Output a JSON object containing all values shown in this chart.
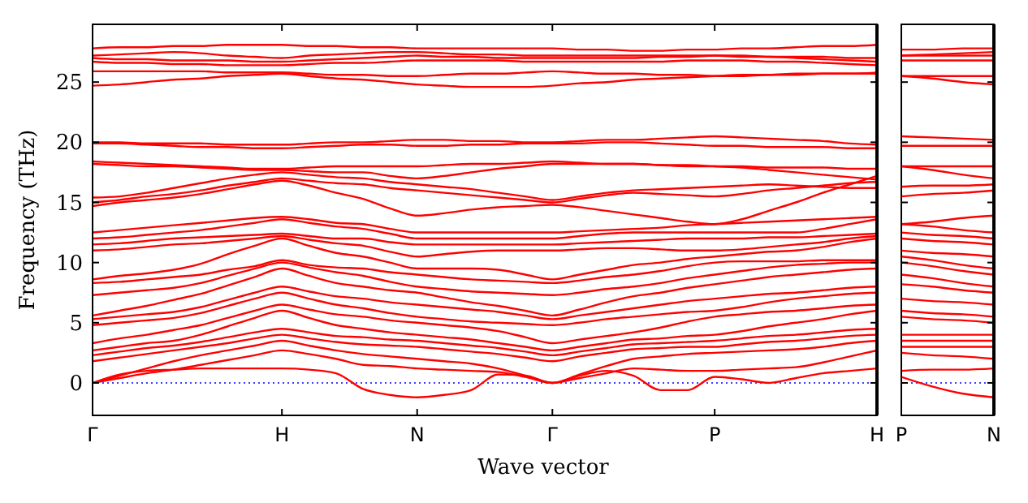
{
  "chart_data": [
    {
      "type": "line",
      "ylabel": "Frequency (THz)",
      "xlabel": "Wave vector",
      "categories": [
        "Γ",
        null,
        null,
        null,
        null,
        null,
        null,
        "H",
        null,
        null,
        null,
        null,
        "N",
        null,
        null,
        null,
        null,
        "Γ",
        null,
        null,
        null,
        null,
        null,
        "P",
        null,
        null,
        null,
        null,
        null,
        "H"
      ],
      "ylim": [
        -2.7,
        29.8
      ],
      "yticks": [
        0,
        5,
        10,
        15,
        20,
        25
      ],
      "ref_lines": [
        {
          "axis": "y",
          "value": 0,
          "color": "#0000ff",
          "line_style": "dotted"
        }
      ],
      "series": [
        {
          "color": "#ff0000",
          "values": [
            0,
            0.7,
            1.0,
            1.1,
            1.2,
            1.2,
            1.2,
            1.2,
            1.1,
            0.8,
            -0.5,
            -1.0,
            -1.2,
            -1.0,
            -0.6,
            0.7,
            0.6,
            0,
            0.6,
            1.0,
            0.6,
            -0.6,
            -0.6,
            0.5,
            0.3,
            0,
            0.4,
            0.8,
            1.0,
            1.2
          ]
        },
        {
          "color": "#ff0000",
          "values": [
            0,
            0.4,
            0.8,
            1.1,
            1.5,
            1.9,
            2.3,
            2.7,
            2.4,
            2.0,
            1.5,
            1.4,
            1.2,
            1.1,
            1.0,
            0.9,
            0.5,
            0,
            0.4,
            0.8,
            1.2,
            1.1,
            1.0,
            1.0,
            1.1,
            1.2,
            1.3,
            1.7,
            2.2,
            2.7
          ]
        },
        {
          "color": "#ff0000",
          "values": [
            0,
            0.6,
            1.2,
            1.8,
            2.3,
            2.7,
            3.1,
            3.5,
            3.1,
            2.7,
            2.4,
            2.2,
            2.0,
            1.8,
            1.6,
            1.2,
            0.6,
            0,
            0.7,
            1.4,
            2.0,
            2.2,
            2.4,
            2.5,
            2.6,
            2.7,
            2.8,
            3.0,
            3.3,
            3.5
          ]
        },
        {
          "color": "#ff0000",
          "values": [
            1.8,
            2.1,
            2.4,
            2.7,
            3.0,
            3.3,
            3.7,
            4.0,
            3.7,
            3.4,
            3.2,
            3.1,
            3.0,
            2.8,
            2.6,
            2.4,
            2.1,
            1.8,
            2.2,
            2.5,
            2.8,
            2.9,
            3.0,
            3.0,
            3.2,
            3.4,
            3.5,
            3.7,
            3.9,
            4.0
          ]
        },
        {
          "color": "#ff0000",
          "values": [
            2.3,
            2.6,
            2.9,
            3.1,
            3.4,
            3.8,
            4.2,
            4.5,
            4.2,
            3.9,
            3.8,
            3.6,
            3.5,
            3.3,
            3.1,
            2.9,
            2.6,
            2.3,
            2.6,
            2.9,
            3.2,
            3.3,
            3.4,
            3.5,
            3.7,
            3.9,
            4.0,
            4.2,
            4.4,
            4.5
          ]
        },
        {
          "color": "#ff0000",
          "values": [
            2.7,
            3.0,
            3.3,
            3.5,
            4.0,
            4.7,
            5.4,
            6.0,
            5.4,
            4.8,
            4.5,
            4.2,
            4.0,
            3.8,
            3.6,
            3.3,
            3.0,
            2.7,
            3.0,
            3.3,
            3.6,
            3.7,
            3.9,
            4.0,
            4.3,
            4.7,
            5.0,
            5.3,
            5.7,
            6.0
          ]
        },
        {
          "color": "#ff0000",
          "values": [
            3.3,
            3.7,
            4.0,
            4.4,
            4.8,
            5.4,
            6.0,
            6.5,
            6.1,
            5.7,
            5.5,
            5.2,
            5.0,
            4.8,
            4.6,
            4.3,
            3.8,
            3.3,
            3.6,
            3.9,
            4.2,
            4.6,
            5.1,
            5.5,
            5.7,
            5.9,
            6.0,
            6.2,
            6.4,
            6.5
          ]
        },
        {
          "color": "#ff0000",
          "values": [
            4.8,
            5.0,
            5.2,
            5.4,
            5.8,
            6.4,
            7.0,
            7.5,
            7.0,
            6.5,
            6.2,
            5.8,
            5.5,
            5.3,
            5.1,
            5.0,
            4.9,
            4.8,
            5.0,
            5.3,
            5.5,
            5.7,
            5.9,
            6.0,
            6.3,
            6.7,
            7.0,
            7.2,
            7.4,
            7.5
          ]
        },
        {
          "color": "#ff0000",
          "values": [
            5.3,
            5.5,
            5.7,
            5.9,
            6.3,
            6.9,
            7.5,
            8.0,
            7.6,
            7.2,
            7.0,
            6.7,
            6.5,
            6.3,
            6.1,
            5.9,
            5.6,
            5.3,
            5.6,
            5.9,
            6.2,
            6.5,
            6.8,
            7.0,
            7.2,
            7.4,
            7.5,
            7.7,
            7.9,
            8.0
          ]
        },
        {
          "color": "#ff0000",
          "values": [
            5.6,
            6.0,
            6.4,
            6.9,
            7.4,
            8.1,
            8.8,
            9.5,
            8.9,
            8.3,
            8.0,
            7.7,
            7.5,
            7.1,
            6.7,
            6.4,
            6.0,
            5.6,
            6.1,
            6.7,
            7.2,
            7.5,
            7.9,
            8.2,
            8.5,
            8.8,
            9.0,
            9.2,
            9.4,
            9.5
          ]
        },
        {
          "color": "#ff0000",
          "values": [
            7.3,
            7.5,
            7.7,
            7.9,
            8.3,
            8.9,
            9.5,
            10,
            9.6,
            9.2,
            8.9,
            8.4,
            8.0,
            7.8,
            7.6,
            7.5,
            7.4,
            7.3,
            7.5,
            7.8,
            8.0,
            8.3,
            8.7,
            9.0,
            9.3,
            9.6,
            9.8,
            9.9,
            10,
            10
          ]
        },
        {
          "color": "#ff0000",
          "values": [
            8.3,
            8.4,
            8.6,
            8.8,
            9.0,
            9.4,
            9.7,
            10.2,
            9.8,
            9.6,
            9.5,
            9.2,
            9.0,
            8.8,
            8.6,
            8.5,
            8.4,
            8.3,
            8.5,
            8.8,
            9.0,
            9.3,
            9.7,
            10,
            10.1,
            10.1,
            10.1,
            10.2,
            10.2,
            10.2
          ]
        },
        {
          "color": "#ff0000",
          "values": [
            8.6,
            8.9,
            9.1,
            9.4,
            9.9,
            10.7,
            11.4,
            12,
            11.4,
            10.8,
            10.5,
            10.0,
            9.5,
            9.5,
            9.5,
            9.4,
            9.0,
            8.6,
            9.0,
            9.4,
            9.8,
            10.0,
            10.3,
            10.5,
            10.7,
            10.9,
            11,
            11.3,
            11.7,
            12
          ]
        },
        {
          "color": "#ff0000",
          "values": [
            11,
            11.1,
            11.3,
            11.5,
            11.6,
            11.8,
            12.0,
            12.2,
            11.9,
            11.6,
            11.4,
            10.9,
            10.5,
            10.7,
            10.9,
            11,
            11,
            11,
            11.1,
            11.2,
            11.2,
            11.1,
            11.0,
            11,
            11.1,
            11.3,
            11.5,
            11.7,
            12.0,
            12.2
          ]
        },
        {
          "color": "#ff0000",
          "values": [
            11.5,
            11.6,
            11.8,
            12.0,
            12.1,
            12.2,
            12.3,
            12.4,
            12.2,
            12.0,
            12.0,
            11.7,
            11.5,
            11.5,
            11.5,
            11.5,
            11.5,
            11.5,
            11.6,
            11.7,
            11.8,
            11.9,
            12.0,
            12,
            12,
            12.1,
            12.1,
            12.2,
            12.3,
            12.4
          ]
        },
        {
          "color": "#ff0000",
          "values": [
            12,
            12.1,
            12.3,
            12.5,
            12.7,
            13.0,
            13.3,
            13.6,
            13.3,
            13.0,
            12.8,
            12.4,
            12,
            12,
            12,
            12,
            12,
            12,
            12.2,
            12.4,
            12.5,
            12.5,
            12.5,
            12.5,
            12.5,
            12.5,
            12.5,
            12.8,
            13.2,
            13.6
          ]
        },
        {
          "color": "#ff0000",
          "values": [
            12.5,
            12.7,
            12.9,
            13.1,
            13.3,
            13.5,
            13.7,
            13.8,
            13.6,
            13.3,
            13.2,
            12.8,
            12.5,
            12.5,
            12.5,
            12.5,
            12.5,
            12.5,
            12.6,
            12.7,
            12.8,
            12.9,
            13.1,
            13.2,
            13.3,
            13.4,
            13.5,
            13.6,
            13.7,
            13.8
          ]
        },
        {
          "color": "#ff0000",
          "values": [
            14.7,
            15.0,
            15.2,
            15.4,
            15.7,
            16.1,
            16.5,
            16.8,
            16.4,
            15.8,
            15.3,
            14.5,
            13.9,
            14.1,
            14.4,
            14.6,
            14.7,
            14.8,
            14.6,
            14.3,
            14.0,
            13.7,
            13.4,
            13.2,
            13.6,
            14.3,
            15.0,
            15.8,
            16.5,
            17.2
          ]
        },
        {
          "color": "#ff0000",
          "values": [
            15,
            15.2,
            15.5,
            15.7,
            16.0,
            16.4,
            16.7,
            17.0,
            16.8,
            16.6,
            16.5,
            16.2,
            16,
            15.8,
            15.6,
            15.4,
            15.2,
            15,
            15.3,
            15.6,
            15.8,
            15.7,
            15.6,
            15.5,
            15.7,
            16.0,
            16.2,
            16.4,
            16.6,
            16.7
          ]
        },
        {
          "color": "#ff0000",
          "values": [
            15.4,
            15.5,
            15.8,
            16.2,
            16.6,
            17.0,
            17.3,
            17.5,
            17.3,
            17.1,
            17.0,
            16.7,
            16.5,
            16.3,
            16.1,
            15.8,
            15.5,
            15.2,
            15.5,
            15.8,
            16.0,
            16.1,
            16.2,
            16.3,
            16.4,
            16.5,
            16.4,
            16.3,
            16.2,
            16.2
          ]
        },
        {
          "color": "#ff0000",
          "values": [
            18.2,
            18.1,
            18.0,
            18.0,
            17.9,
            17.8,
            17.7,
            17.7,
            17.6,
            17.5,
            17.5,
            17.2,
            17,
            17.2,
            17.5,
            17.8,
            18.0,
            18.2,
            18.2,
            18.2,
            18.2,
            18.1,
            18.1,
            18,
            17.9,
            17.7,
            17.5,
            17.3,
            17.1,
            16.9
          ]
        },
        {
          "color": "#ff0000",
          "values": [
            18.4,
            18.3,
            18.2,
            18.1,
            18.0,
            17.9,
            17.8,
            17.8,
            17.9,
            18.0,
            18.0,
            18.0,
            18,
            18.1,
            18.2,
            18.2,
            18.3,
            18.4,
            18.3,
            18.2,
            18.2,
            18.1,
            18.0,
            18,
            18.0,
            17.9,
            17.9,
            17.9,
            17.8,
            17.8
          ]
        },
        {
          "color": "#ff0000",
          "values": [
            19.9,
            19.9,
            19.8,
            19.7,
            19.6,
            19.6,
            19.5,
            19.5,
            19.6,
            19.7,
            19.8,
            19.8,
            19.7,
            19.7,
            19.8,
            19.8,
            19.9,
            19.9,
            19.9,
            20.0,
            20.0,
            19.9,
            19.8,
            19.7,
            19.7,
            19.6,
            19.6,
            19.6,
            19.5,
            19.5
          ]
        },
        {
          "color": "#ff0000",
          "values": [
            20,
            20,
            19.9,
            19.9,
            19.9,
            19.8,
            19.8,
            19.8,
            19.9,
            20.0,
            20.0,
            20.1,
            20.2,
            20.2,
            20.1,
            20.1,
            20.0,
            20,
            20.1,
            20.2,
            20.2,
            20.3,
            20.4,
            20.5,
            20.4,
            20.3,
            20.2,
            20.1,
            19.9,
            19.8
          ]
        },
        {
          "color": "#ff0000",
          "values": [
            24.7,
            24.8,
            25.0,
            25.2,
            25.3,
            25.5,
            25.6,
            25.7,
            25.5,
            25.3,
            25.2,
            25.0,
            24.8,
            24.7,
            24.6,
            24.6,
            24.6,
            24.7,
            24.9,
            25.0,
            25.2,
            25.3,
            25.4,
            25.5,
            25.6,
            25.6,
            25.7,
            25.7,
            25.7,
            25.7
          ]
        },
        {
          "color": "#ff0000",
          "values": [
            25.9,
            25.9,
            25.9,
            25.9,
            25.9,
            25.8,
            25.8,
            25.8,
            25.7,
            25.6,
            25.6,
            25.5,
            25.5,
            25.6,
            25.7,
            25.7,
            25.8,
            25.9,
            25.8,
            25.7,
            25.7,
            25.6,
            25.6,
            25.5,
            25.5,
            25.6,
            25.6,
            25.7,
            25.7,
            25.8
          ]
        },
        {
          "color": "#ff0000",
          "values": [
            26.7,
            26.6,
            26.6,
            26.5,
            26.5,
            26.4,
            26.4,
            26.4,
            26.5,
            26.6,
            26.6,
            26.7,
            26.8,
            26.8,
            26.8,
            26.8,
            26.7,
            26.7,
            26.7,
            26.7,
            26.7,
            26.7,
            26.8,
            26.8,
            26.8,
            26.7,
            26.7,
            26.6,
            26.5,
            26.4
          ]
        },
        {
          "color": "#ff0000",
          "values": [
            27.0,
            26.9,
            26.9,
            26.8,
            26.8,
            26.8,
            26.7,
            26.7,
            26.8,
            26.9,
            27.0,
            27.1,
            27.2,
            27.1,
            27.1,
            27.0,
            27.0,
            27.0,
            27.0,
            27.0,
            27.0,
            27.1,
            27.1,
            27.2,
            27.1,
            27.1,
            27.0,
            26.9,
            26.8,
            26.7
          ]
        },
        {
          "color": "#ff0000",
          "values": [
            27.2,
            27.3,
            27.4,
            27.5,
            27.4,
            27.2,
            27.1,
            27.0,
            27.2,
            27.3,
            27.4,
            27.5,
            27.5,
            27.4,
            27.3,
            27.3,
            27.2,
            27.2,
            27.2,
            27.2,
            27.2,
            27.2,
            27.2,
            27.2,
            27.2,
            27.1,
            27.1,
            27.1,
            27.0,
            27.0
          ]
        },
        {
          "color": "#ff0000",
          "values": [
            27.8,
            27.9,
            27.9,
            28.0,
            28.0,
            28.1,
            28.1,
            28.1,
            28.0,
            28.0,
            27.9,
            27.9,
            27.8,
            27.8,
            27.8,
            27.8,
            27.8,
            27.8,
            27.7,
            27.7,
            27.6,
            27.6,
            27.7,
            27.7,
            27.8,
            27.8,
            27.9,
            28.0,
            28.0,
            28.1
          ]
        }
      ]
    },
    {
      "type": "line",
      "categories": [
        "P",
        null,
        null,
        "N"
      ],
      "ylim": [
        -2.7,
        29.8
      ],
      "yticks": [
        0,
        5,
        10,
        15,
        20,
        25
      ],
      "tick_labels": "x",
      "ref_lines": [
        {
          "axis": "y",
          "value": 0,
          "color": "#0000ff",
          "line_style": "dotted"
        }
      ],
      "series": [
        {
          "color": "#ff0000",
          "values": [
            0.5,
            -0.3,
            -0.9,
            -1.2
          ]
        },
        {
          "color": "#ff0000",
          "values": [
            1.0,
            1.1,
            1.1,
            1.2
          ]
        },
        {
          "color": "#ff0000",
          "values": [
            2.5,
            2.3,
            2.2,
            2.0
          ]
        },
        {
          "color": "#ff0000",
          "values": [
            3.0,
            3.0,
            3.0,
            3.0
          ]
        },
        {
          "color": "#ff0000",
          "values": [
            3.5,
            3.5,
            3.5,
            3.5
          ]
        },
        {
          "color": "#ff0000",
          "values": [
            4.0,
            4.0,
            4.0,
            4.0
          ]
        },
        {
          "color": "#ff0000",
          "values": [
            5.5,
            5.3,
            5.2,
            5.0
          ]
        },
        {
          "color": "#ff0000",
          "values": [
            6.0,
            5.8,
            5.7,
            5.5
          ]
        },
        {
          "color": "#ff0000",
          "values": [
            7.0,
            6.8,
            6.7,
            6.5
          ]
        },
        {
          "color": "#ff0000",
          "values": [
            8.2,
            8.0,
            7.7,
            7.5
          ]
        },
        {
          "color": "#ff0000",
          "values": [
            9.0,
            8.7,
            8.3,
            8.0
          ]
        },
        {
          "color": "#ff0000",
          "values": [
            10,
            9.7,
            9.3,
            9.0
          ]
        },
        {
          "color": "#ff0000",
          "values": [
            10.5,
            10.2,
            9.8,
            9.5
          ]
        },
        {
          "color": "#ff0000",
          "values": [
            11,
            10.8,
            10.7,
            10.5
          ]
        },
        {
          "color": "#ff0000",
          "values": [
            12,
            11.8,
            11.7,
            11.5
          ]
        },
        {
          "color": "#ff0000",
          "values": [
            12.5,
            12.3,
            12.2,
            12
          ]
        },
        {
          "color": "#ff0000",
          "values": [
            13.2,
            13.0,
            12.7,
            12.5
          ]
        },
        {
          "color": "#ff0000",
          "values": [
            13.2,
            13.4,
            13.7,
            13.9
          ]
        },
        {
          "color": "#ff0000",
          "values": [
            15.5,
            15.7,
            15.8,
            16
          ]
        },
        {
          "color": "#ff0000",
          "values": [
            16.3,
            16.4,
            16.4,
            16.5
          ]
        },
        {
          "color": "#ff0000",
          "values": [
            18,
            17.7,
            17.3,
            17
          ]
        },
        {
          "color": "#ff0000",
          "values": [
            18,
            18,
            18,
            18
          ]
        },
        {
          "color": "#ff0000",
          "values": [
            19.7,
            19.7,
            19.7,
            19.7
          ]
        },
        {
          "color": "#ff0000",
          "values": [
            20.5,
            20.4,
            20.3,
            20.2
          ]
        },
        {
          "color": "#ff0000",
          "values": [
            25.5,
            25.3,
            25.0,
            24.8
          ]
        },
        {
          "color": "#ff0000",
          "values": [
            25.5,
            25.5,
            25.5,
            25.5
          ]
        },
        {
          "color": "#ff0000",
          "values": [
            26.8,
            26.8,
            26.8,
            26.8
          ]
        },
        {
          "color": "#ff0000",
          "values": [
            27.2,
            27.2,
            27.2,
            27.2
          ]
        },
        {
          "color": "#ff0000",
          "values": [
            27.2,
            27.3,
            27.4,
            27.5
          ]
        },
        {
          "color": "#ff0000",
          "values": [
            27.7,
            27.7,
            27.8,
            27.8
          ]
        }
      ]
    }
  ]
}
